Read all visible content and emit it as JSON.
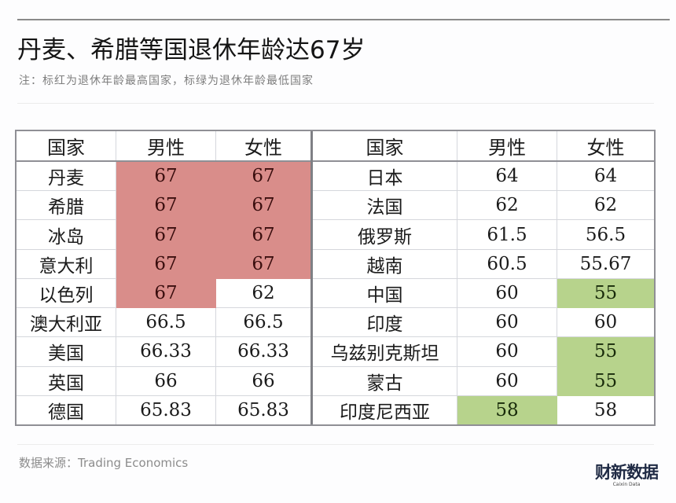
{
  "header": {
    "title": "丹麦、希腊等国退休年龄达67岁",
    "subtitle": "注：标红为退休年龄最高国家，标绿为退休年龄最低国家"
  },
  "footer": {
    "source": "数据来源：Trading Economics",
    "logo_main": "财新数据",
    "logo_sub": "Caixin Data"
  },
  "colors": {
    "highest_red": "#d98d8a",
    "lowest_green": "#b7d38c",
    "border": "#8f8f95"
  },
  "table": {
    "columns": [
      "国家",
      "男性",
      "女性"
    ],
    "left_rows": [
      {
        "country": "丹麦",
        "male": "67",
        "female": "67",
        "male_hl": "red",
        "female_hl": "red"
      },
      {
        "country": "希腊",
        "male": "67",
        "female": "67",
        "male_hl": "red",
        "female_hl": "red"
      },
      {
        "country": "冰岛",
        "male": "67",
        "female": "67",
        "male_hl": "red",
        "female_hl": "red"
      },
      {
        "country": "意大利",
        "male": "67",
        "female": "67",
        "male_hl": "red",
        "female_hl": "red"
      },
      {
        "country": "以色列",
        "male": "67",
        "female": "62",
        "male_hl": "red",
        "female_hl": ""
      },
      {
        "country": "澳大利亚",
        "male": "66.5",
        "female": "66.5",
        "male_hl": "",
        "female_hl": ""
      },
      {
        "country": "美国",
        "male": "66.33",
        "female": "66.33",
        "male_hl": "",
        "female_hl": ""
      },
      {
        "country": "英国",
        "male": "66",
        "female": "66",
        "male_hl": "",
        "female_hl": ""
      },
      {
        "country": "德国",
        "male": "65.83",
        "female": "65.83",
        "male_hl": "",
        "female_hl": ""
      }
    ],
    "right_rows": [
      {
        "country": "日本",
        "male": "64",
        "female": "64",
        "male_hl": "",
        "female_hl": ""
      },
      {
        "country": "法国",
        "male": "62",
        "female": "62",
        "male_hl": "",
        "female_hl": ""
      },
      {
        "country": "俄罗斯",
        "male": "61.5",
        "female": "56.5",
        "male_hl": "",
        "female_hl": ""
      },
      {
        "country": "越南",
        "male": "60.5",
        "female": "55.67",
        "male_hl": "",
        "female_hl": ""
      },
      {
        "country": "中国",
        "male": "60",
        "female": "55",
        "male_hl": "",
        "female_hl": "green"
      },
      {
        "country": "印度",
        "male": "60",
        "female": "60",
        "male_hl": "",
        "female_hl": ""
      },
      {
        "country": "乌兹别克斯坦",
        "male": "60",
        "female": "55",
        "male_hl": "",
        "female_hl": "green"
      },
      {
        "country": "蒙古",
        "male": "60",
        "female": "55",
        "male_hl": "",
        "female_hl": "green"
      },
      {
        "country": "印度尼西亚",
        "male": "58",
        "female": "58",
        "male_hl": "green",
        "female_hl": ""
      }
    ]
  },
  "chart_data": {
    "type": "table",
    "title": "丹麦、希腊等国退休年龄达67岁",
    "subtitle": "注：标红为退休年龄最高国家，标绿为退休年龄最低国家",
    "source": "数据来源：Trading Economics",
    "columns": [
      "国家",
      "男性",
      "女性"
    ],
    "categories": [
      "丹麦",
      "希腊",
      "冰岛",
      "意大利",
      "以色列",
      "澳大利亚",
      "美国",
      "英国",
      "德国",
      "日本",
      "法国",
      "俄罗斯",
      "越南",
      "中国",
      "印度",
      "乌兹别克斯坦",
      "蒙古",
      "印度尼西亚"
    ],
    "series": [
      {
        "name": "男性",
        "values": [
          67,
          67,
          67,
          67,
          67,
          66.5,
          66.33,
          66,
          65.83,
          64,
          62,
          61.5,
          60.5,
          60,
          60,
          60,
          60,
          58
        ]
      },
      {
        "name": "女性",
        "values": [
          67,
          67,
          67,
          67,
          62,
          66.5,
          66.33,
          66,
          65.83,
          64,
          62,
          56.5,
          55.67,
          55,
          60,
          55,
          55,
          58
        ]
      }
    ],
    "highlights": {
      "red_highest": [
        [
          "丹麦",
          "男性"
        ],
        [
          "丹麦",
          "女性"
        ],
        [
          "希腊",
          "男性"
        ],
        [
          "希腊",
          "女性"
        ],
        [
          "冰岛",
          "男性"
        ],
        [
          "冰岛",
          "女性"
        ],
        [
          "意大利",
          "男性"
        ],
        [
          "意大利",
          "女性"
        ],
        [
          "以色列",
          "男性"
        ]
      ],
      "green_lowest": [
        [
          "中国",
          "女性"
        ],
        [
          "乌兹别克斯坦",
          "女性"
        ],
        [
          "蒙古",
          "女性"
        ],
        [
          "印度尼西亚",
          "男性"
        ]
      ]
    }
  }
}
